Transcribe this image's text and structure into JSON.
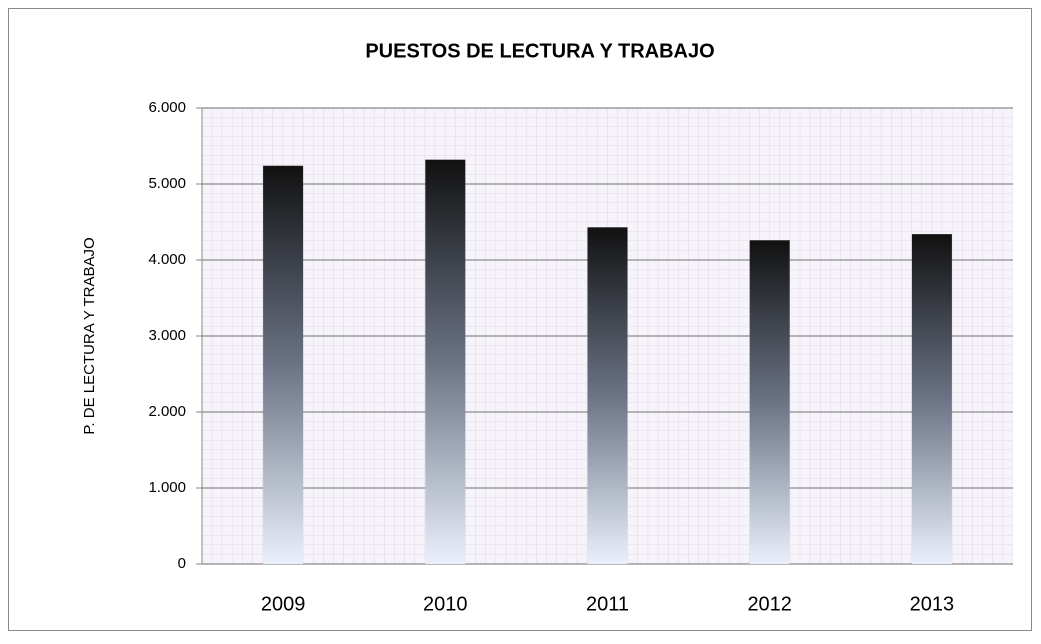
{
  "chart_data": {
    "type": "bar",
    "title": "PUESTOS DE LECTURA Y TRABAJO",
    "y_label": "P. DE LECTURA Y TRABAJO",
    "categories": [
      "2009",
      "2010",
      "2011",
      "2012",
      "2013"
    ],
    "values": [
      5240,
      5320,
      4430,
      4260,
      4340
    ],
    "color_top": "#111111",
    "color_bottom": "#eaf0fb",
    "ylim": [
      0,
      6000
    ],
    "yticks": [
      0,
      {
        "value": 1000,
        "label": "1.000"
      },
      {
        "value": 2000,
        "label": "2.000"
      },
      {
        "value": 3000,
        "label": "3.000"
      },
      {
        "value": 4000,
        "label": "4.000"
      },
      {
        "value": 5000,
        "label": "5.000"
      },
      {
        "value": 6000,
        "label": "6.000"
      }
    ],
    "grid": true
  }
}
